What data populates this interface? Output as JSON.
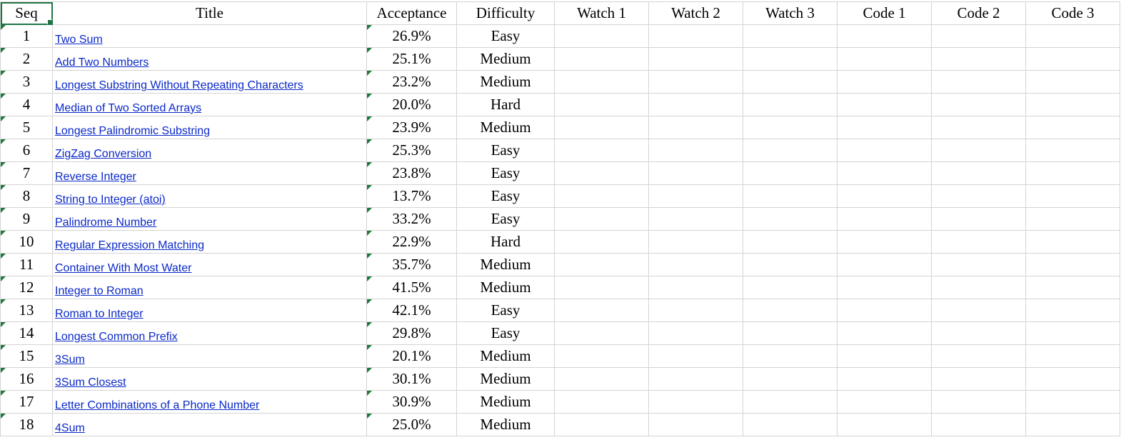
{
  "headers": {
    "seq": "Seq",
    "title": "Title",
    "acceptance": "Acceptance",
    "difficulty": "Difficulty",
    "watch1": "Watch 1",
    "watch2": "Watch 2",
    "watch3": "Watch 3",
    "code1": "Code 1",
    "code2": "Code 2",
    "code3": "Code 3"
  },
  "rows": [
    {
      "seq": "1",
      "title": "Two Sum",
      "acceptance": "26.9%",
      "difficulty": "Easy"
    },
    {
      "seq": "2",
      "title": "Add Two Numbers",
      "acceptance": "25.1%",
      "difficulty": "Medium"
    },
    {
      "seq": "3",
      "title": "Longest Substring Without Repeating Characters",
      "acceptance": "23.2%",
      "difficulty": "Medium"
    },
    {
      "seq": "4",
      "title": "Median of Two Sorted Arrays",
      "acceptance": "20.0%",
      "difficulty": "Hard"
    },
    {
      "seq": "5",
      "title": "Longest Palindromic Substring",
      "acceptance": "23.9%",
      "difficulty": "Medium"
    },
    {
      "seq": "6",
      "title": "ZigZag Conversion",
      "acceptance": "25.3%",
      "difficulty": "Easy"
    },
    {
      "seq": "7",
      "title": "Reverse Integer",
      "acceptance": "23.8%",
      "difficulty": "Easy"
    },
    {
      "seq": "8",
      "title": "String to Integer (atoi)",
      "acceptance": "13.7%",
      "difficulty": "Easy"
    },
    {
      "seq": "9",
      "title": "Palindrome Number",
      "acceptance": "33.2%",
      "difficulty": "Easy"
    },
    {
      "seq": "10",
      "title": "Regular Expression Matching",
      "acceptance": "22.9%",
      "difficulty": "Hard"
    },
    {
      "seq": "11",
      "title": "Container With Most Water",
      "acceptance": "35.7%",
      "difficulty": "Medium"
    },
    {
      "seq": "12",
      "title": "Integer to Roman",
      "acceptance": "41.5%",
      "difficulty": "Medium"
    },
    {
      "seq": "13",
      "title": "Roman to Integer",
      "acceptance": "42.1%",
      "difficulty": "Easy"
    },
    {
      "seq": "14",
      "title": "Longest Common Prefix",
      "acceptance": "29.8%",
      "difficulty": "Easy"
    },
    {
      "seq": "15",
      "title": "3Sum",
      "acceptance": "20.1%",
      "difficulty": "Medium"
    },
    {
      "seq": "16",
      "title": "3Sum Closest",
      "acceptance": "30.1%",
      "difficulty": "Medium"
    },
    {
      "seq": "17",
      "title": "Letter Combinations of a Phone Number",
      "acceptance": "30.9%",
      "difficulty": "Medium"
    },
    {
      "seq": "18",
      "title": "4Sum",
      "acceptance": "25.0%",
      "difficulty": "Medium"
    }
  ],
  "colors": {
    "gridline": "#d4d4d4",
    "link": "#0b29c8",
    "error_indicator": "#1e7a3b",
    "active_cell_border": "#217346"
  }
}
